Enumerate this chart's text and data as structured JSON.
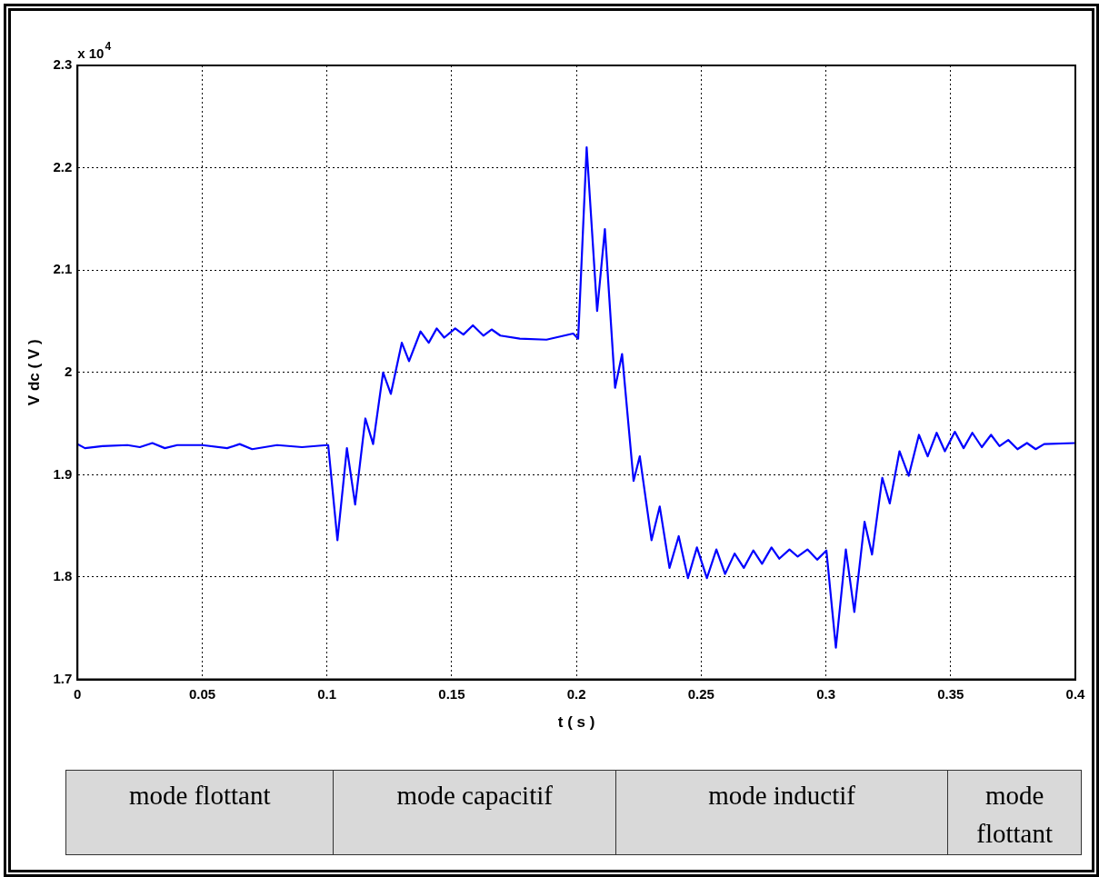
{
  "chart_data": {
    "type": "line",
    "xlabel": "t ( s )",
    "ylabel": "V dc ( V )",
    "annotations": [
      "x 10$^{4}$",
      "mode flottant",
      "mode capacitif",
      "mode inductif",
      "mode flottant"
    ],
    "xlim": [
      0,
      0.4
    ],
    "xticks": [
      0,
      0.05,
      0.1,
      0.15,
      0.2,
      0.25,
      0.3,
      0.35,
      0.4
    ],
    "ylim": [
      1.7,
      2.3
    ],
    "yticks": [
      1.7,
      1.8,
      1.9,
      2,
      2.1,
      2.2,
      2.3
    ],
    "grid": true,
    "legend": false,
    "marker": "none",
    "line_style": "solid",
    "series": [
      {
        "color": "#0000ff",
        "x": [
          0,
          0.003,
          0.01,
          0.02,
          0.025,
          0.03,
          0.035,
          0.04,
          0.05,
          0.06,
          0.065,
          0.07,
          0.08,
          0.09,
          0.1,
          0.1005,
          0.1042,
          0.108,
          0.1113,
          0.1154,
          0.1185,
          0.1225,
          0.1256,
          0.13,
          0.1329,
          0.1375,
          0.1408,
          0.144,
          0.147,
          0.1514,
          0.1547,
          0.1585,
          0.1627,
          0.166,
          0.1695,
          0.1773,
          0.188,
          0.1987,
          0.2007,
          0.2041,
          0.2083,
          0.2114,
          0.2155,
          0.2183,
          0.2229,
          0.2254,
          0.2301,
          0.2334,
          0.2373,
          0.241,
          0.2447,
          0.2483,
          0.2523,
          0.2561,
          0.2596,
          0.2634,
          0.2671,
          0.2709,
          0.2744,
          0.2782,
          0.2813,
          0.2854,
          0.2887,
          0.2926,
          0.2965,
          0.3002,
          0.304,
          0.308,
          0.3114,
          0.3155,
          0.3185,
          0.3226,
          0.3256,
          0.3295,
          0.3332,
          0.3373,
          0.3408,
          0.3444,
          0.3477,
          0.3517,
          0.3552,
          0.3587,
          0.3625,
          0.3662,
          0.3696,
          0.3731,
          0.3768,
          0.3806,
          0.3841,
          0.3875,
          0.4
        ],
        "values": [
          1.93,
          1.926,
          1.928,
          1.929,
          1.927,
          1.931,
          1.926,
          1.929,
          1.929,
          1.926,
          1.93,
          1.925,
          1.929,
          1.927,
          1.929,
          1.929,
          1.836,
          1.926,
          1.871,
          1.955,
          1.93,
          2,
          1.979,
          2.029,
          2.011,
          2.04,
          2.029,
          2.043,
          2.034,
          2.043,
          2.037,
          2.046,
          2.036,
          2.042,
          2.036,
          2.033,
          2.032,
          2.038,
          2.033,
          2.22,
          2.06,
          2.14,
          1.985,
          2.018,
          1.894,
          1.918,
          1.836,
          1.869,
          1.809,
          1.84,
          1.799,
          1.829,
          1.799,
          1.827,
          1.803,
          1.823,
          1.809,
          1.826,
          1.813,
          1.829,
          1.818,
          1.827,
          1.82,
          1.827,
          1.817,
          1.826,
          1.731,
          1.827,
          1.766,
          1.854,
          1.822,
          1.897,
          1.872,
          1.923,
          1.899,
          1.939,
          1.918,
          1.941,
          1.923,
          1.942,
          1.926,
          1.941,
          1.927,
          1.939,
          1.928,
          1.934,
          1.925,
          1.931,
          1.925,
          1.93,
          1.931
        ]
      }
    ]
  }
}
